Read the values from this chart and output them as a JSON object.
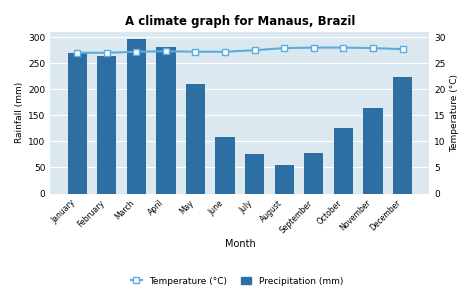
{
  "title": "A climate graph for Manaus, Brazil",
  "months": [
    "January",
    "February",
    "March",
    "April",
    "May",
    "June",
    "July",
    "August",
    "September",
    "October",
    "November",
    "December"
  ],
  "precipitation": [
    269,
    263,
    297,
    282,
    210,
    109,
    76,
    55,
    77,
    125,
    165,
    223
  ],
  "temperature": [
    27.0,
    27.0,
    27.2,
    27.3,
    27.2,
    27.2,
    27.5,
    27.9,
    28.0,
    28.0,
    27.9,
    27.7
  ],
  "bar_color": "#2e6fa3",
  "line_color": "#5aabe0",
  "marker_color": "white",
  "marker_edge_color": "#5aabe0",
  "fig_bg_color": "#ffffff",
  "plot_bg_color": "#dce8f0",
  "ylabel_left": "Rainfall (mm)",
  "ylabel_right": "Temperature (°C)",
  "xlabel": "Month",
  "ylim_left": [
    0,
    310
  ],
  "ylim_right": [
    0,
    31
  ],
  "yticks_left": [
    0,
    50,
    100,
    150,
    200,
    250,
    300
  ],
  "yticks_right": [
    0,
    5,
    10,
    15,
    20,
    25,
    30
  ],
  "legend_temp": "Temperature (°C)",
  "legend_precip": "Precipitation (mm)"
}
